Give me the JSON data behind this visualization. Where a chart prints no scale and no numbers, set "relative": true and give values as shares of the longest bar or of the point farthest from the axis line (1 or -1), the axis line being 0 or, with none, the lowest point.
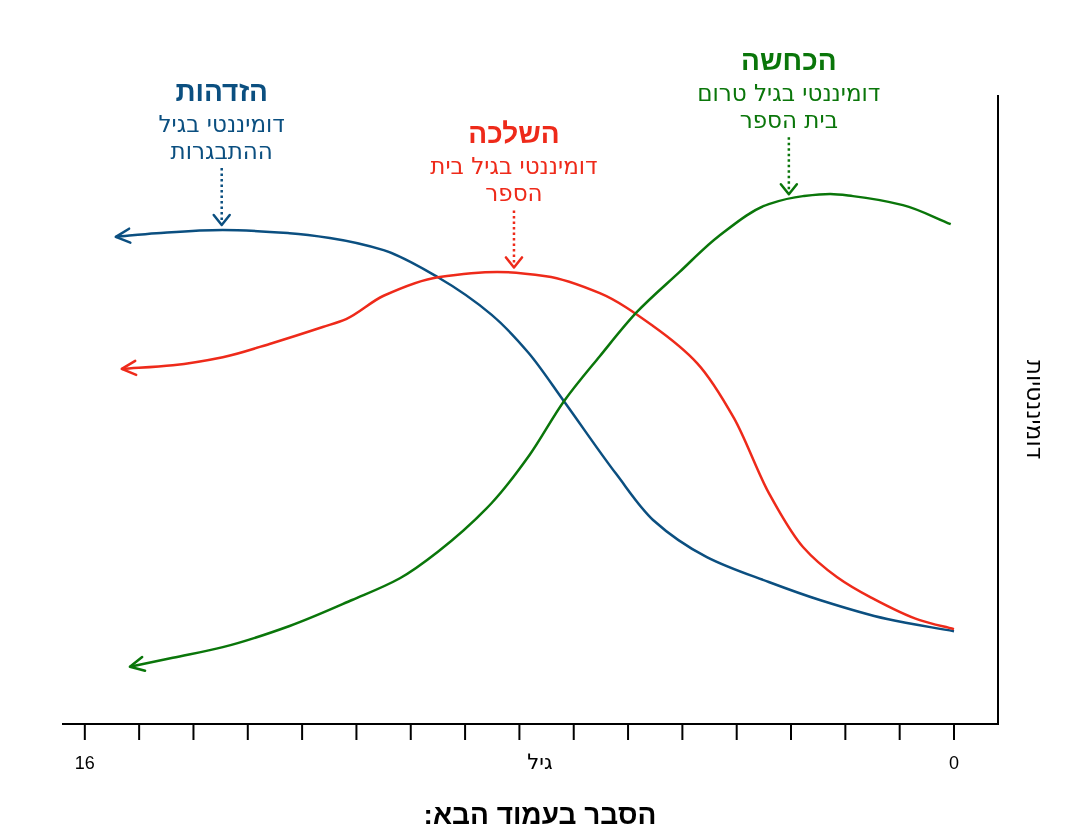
{
  "chart_data": {
    "type": "line",
    "relative": true,
    "xlabel": "גיל",
    "ylabel": "דומיננטיות",
    "xlim": [
      16.42,
      -0.81
    ],
    "xticks": [
      {
        "value": 16,
        "label": "16"
      },
      {
        "value": 15,
        "label": null
      },
      {
        "value": 14,
        "label": null
      },
      {
        "value": 13,
        "label": null
      },
      {
        "value": 12,
        "label": null
      },
      {
        "value": 11,
        "label": null
      },
      {
        "value": 10,
        "label": null
      },
      {
        "value": 9,
        "label": null
      },
      {
        "value": 8,
        "label": null
      },
      {
        "value": 7,
        "label": null
      },
      {
        "value": 6,
        "label": null
      },
      {
        "value": 5,
        "label": null
      },
      {
        "value": 4,
        "label": null
      },
      {
        "value": 3,
        "label": null
      },
      {
        "value": 2,
        "label": null
      },
      {
        "value": 1,
        "label": null
      },
      0
    ],
    "tick_labels": "x",
    "line_style": "solid",
    "series": [
      {
        "name": "הזדהות",
        "color": "#0b4f80",
        "x": [
          0,
          1.23,
          2.47,
          3.41,
          4.55,
          5.54,
          6.22,
          7.18,
          7.83,
          8.51,
          9.5,
          10.5,
          11.49,
          12.23,
          13.46,
          14.68,
          15.43
        ],
        "values": [
          0.175,
          0.198,
          0.234,
          0.268,
          0.315,
          0.385,
          0.472,
          0.609,
          0.7,
          0.772,
          0.843,
          0.894,
          0.917,
          0.926,
          0.932,
          0.926,
          0.919
        ]
      },
      {
        "name": "השלכה",
        "color": "#ee2a1a",
        "x": [
          0,
          0.63,
          1.55,
          2.15,
          2.78,
          3.41,
          4.05,
          4.73,
          5.54,
          6.52,
          7.51,
          8.41,
          9.5,
          10.5,
          11.19,
          11.62,
          12.54,
          13.46,
          14.38,
          15.32
        ],
        "values": [
          0.179,
          0.196,
          0.24,
          0.277,
          0.334,
          0.436,
          0.577,
          0.681,
          0.751,
          0.813,
          0.845,
          0.853,
          0.843,
          0.808,
          0.764,
          0.749,
          0.719,
          0.692,
          0.677,
          0.67
        ]
      },
      {
        "name": "הכחשה",
        "color": "#0a760a",
        "x": [
          0.06,
          0.94,
          1.86,
          2.28,
          2.78,
          3.41,
          4.35,
          5.05,
          5.84,
          6.52,
          7.18,
          7.81,
          8.51,
          9.5,
          10.2,
          11.08,
          12.23,
          13.46,
          14.38,
          15.17
        ],
        "values": [
          0.943,
          0.979,
          0.996,
          1.0,
          0.996,
          0.981,
          0.919,
          0.853,
          0.777,
          0.694,
          0.609,
          0.508,
          0.417,
          0.325,
          0.275,
          0.234,
          0.185,
          0.145,
          0.125,
          0.108
        ]
      }
    ],
    "annotations": [
      {
        "text": "דומיננטי בגיל ההתבגרות",
        "x": 13.48,
        "y": 0.932
      },
      {
        "text": "דומיננטי בגיל בית הספר",
        "x": 8.1,
        "y": 0.852
      },
      {
        "text": "דומיננטי בגיל טרום בית הספר",
        "x": 3.04,
        "y": 0.99
      },
      "הסבר בעמוד הבא:"
    ]
  }
}
